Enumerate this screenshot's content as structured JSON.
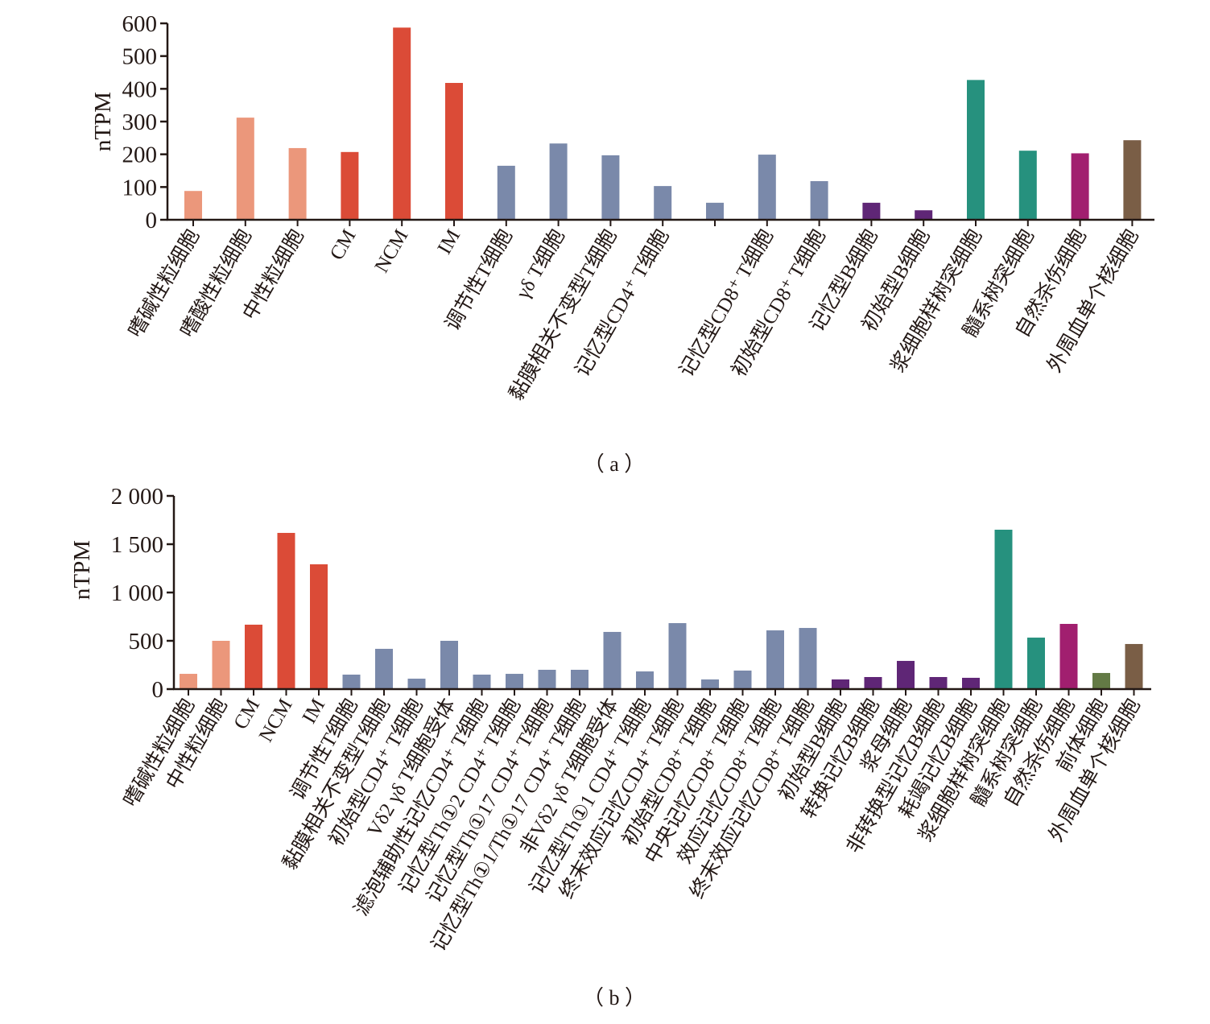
{
  "chart_data": [
    {
      "type": "bar",
      "caption": "（ a ）",
      "title": "",
      "xlabel": "",
      "ylabel": "nTPM",
      "ylim": [
        0,
        600
      ],
      "yticks": [
        0,
        100,
        200,
        300,
        400,
        500,
        600
      ],
      "ytick_labels": [
        "0",
        "100",
        "200",
        "300",
        "400",
        "500",
        "600"
      ],
      "grid": false,
      "legend": "none",
      "categories": [
        "嗜碱性粒细胞",
        "嗜酸性粒细胞",
        "中性粒细胞",
        "CM",
        "NCM",
        "IM",
        "调节性T细胞",
        "γδ T细胞",
        "黏膜相关不变型T细胞",
        "记忆型CD4⁺ T细胞",
        "",
        "记忆型CD8⁺ T细胞",
        "初始型CD8⁺ T细胞",
        "记忆型B细胞",
        "初始型B细胞",
        "浆细胞样树突细胞",
        "髓系树突细胞",
        "自然杀伤细胞",
        "外周血单个核细胞"
      ],
      "values": [
        88,
        312,
        219,
        207,
        587,
        418,
        165,
        233,
        197,
        103,
        52,
        199,
        118,
        52,
        29,
        427,
        211,
        203,
        243
      ],
      "colors": [
        "#eb977b",
        "#eb977b",
        "#eb977b",
        "#db4b37",
        "#db4b37",
        "#db4b37",
        "#7a89aa",
        "#7a89aa",
        "#7a89aa",
        "#7a89aa",
        "#7a89aa",
        "#7a89aa",
        "#7a89aa",
        "#5f2676",
        "#5f2676",
        "#26917e",
        "#26917e",
        "#a11f6f",
        "#7a5e46"
      ]
    },
    {
      "type": "bar",
      "caption": "（ b ）",
      "title": "",
      "xlabel": "",
      "ylabel": "nTPM",
      "ylim": [
        0,
        2000
      ],
      "yticks": [
        0,
        500,
        1000,
        1500,
        2000
      ],
      "ytick_labels": [
        "0",
        "500",
        "1 000",
        "1 500",
        "2 000"
      ],
      "grid": false,
      "legend": "none",
      "categories": [
        "嗜碱性粒细胞",
        "中性粒细胞",
        "CM",
        "NCM",
        "IM",
        "调节性T细胞",
        "黏膜相关不变型T细胞",
        "初始型CD4⁺ T细胞",
        "Vδ2 γδ T细胞受体",
        "滤泡辅助性记忆CD4⁺ T细胞",
        "记忆型Th①2 CD4⁺ T细胞",
        "记忆型Th①17 CD4⁺ T细胞",
        "记忆型Th①1/Th①17 CD4⁺ T细胞",
        "非Vδ2 γδ T细胞受体",
        "记忆型Th①1 CD4⁺ T细胞",
        "终末效应记忆CD4⁺ T细胞",
        "初始型CD8⁺ T细胞",
        "中央记忆CD8⁺ T细胞",
        "效应记忆CD8⁺ T细胞",
        "终末效应记忆CD8⁺ T细胞",
        "初始型B细胞",
        "转换记忆B细胞",
        "浆母细胞",
        "非转换型记忆B细胞",
        "耗竭记忆B细胞",
        "浆细胞样树突细胞",
        "髓系树突细胞",
        "自然杀伤细胞",
        "前体细胞",
        "外周血单个核细胞"
      ],
      "values": [
        158,
        500,
        667,
        1617,
        1292,
        150,
        417,
        108,
        500,
        150,
        158,
        200,
        200,
        592,
        183,
        683,
        100,
        192,
        608,
        633,
        100,
        125,
        292,
        125,
        117,
        1650,
        533,
        675,
        167,
        467
      ],
      "colors": [
        "#eb977b",
        "#eb977b",
        "#db4b37",
        "#db4b37",
        "#db4b37",
        "#7a89aa",
        "#7a89aa",
        "#7a89aa",
        "#7a89aa",
        "#7a89aa",
        "#7a89aa",
        "#7a89aa",
        "#7a89aa",
        "#7a89aa",
        "#7a89aa",
        "#7a89aa",
        "#7a89aa",
        "#7a89aa",
        "#7a89aa",
        "#7a89aa",
        "#5f2676",
        "#5f2676",
        "#5f2676",
        "#5f2676",
        "#5f2676",
        "#26917e",
        "#26917e",
        "#a11f6f",
        "#637a45",
        "#7a5e46"
      ]
    }
  ]
}
